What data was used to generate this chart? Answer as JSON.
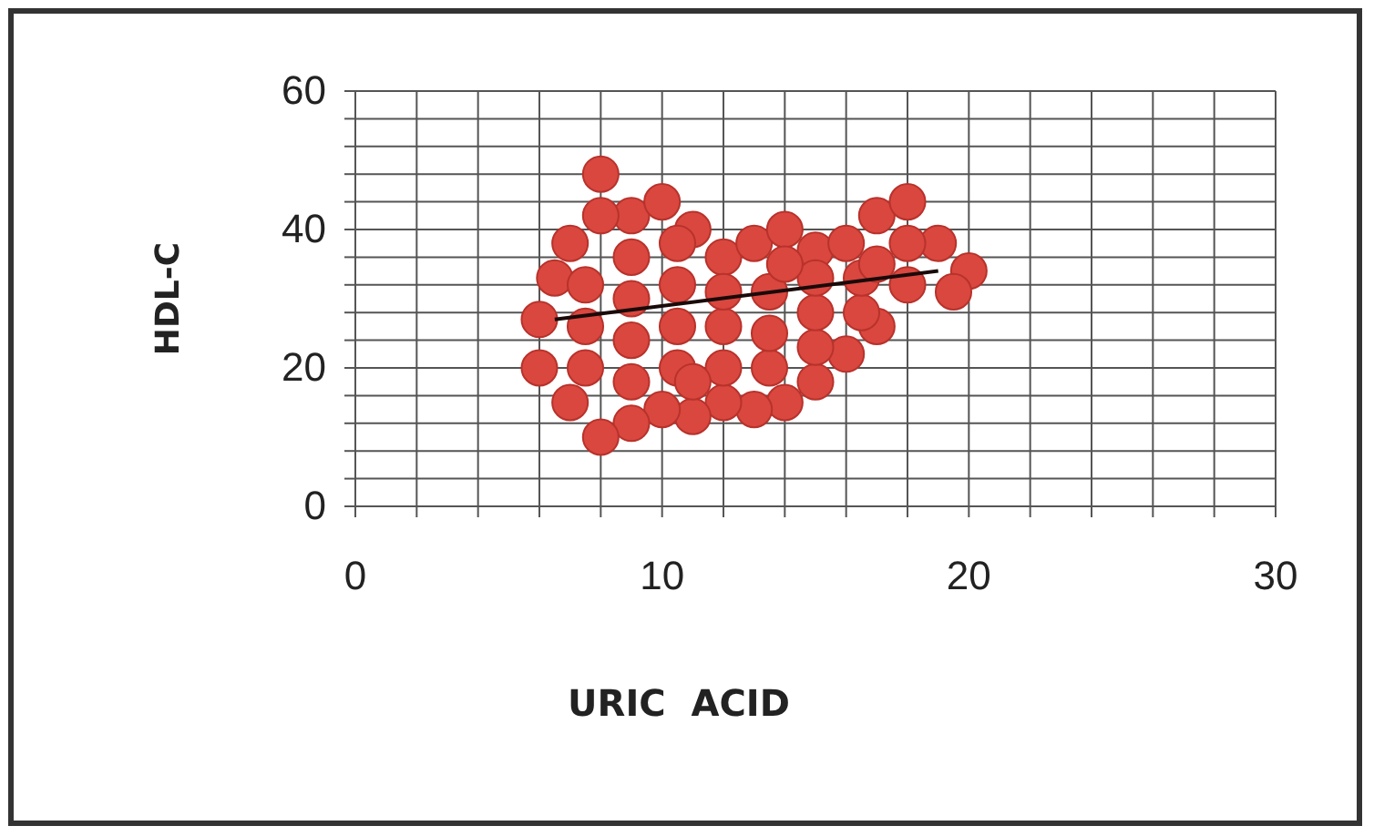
{
  "chart_data": {
    "type": "scatter",
    "xlabel": "URIC  ACID",
    "ylabel": "HDL-C",
    "xlim": [
      0,
      30
    ],
    "ylim": [
      0,
      60
    ],
    "xticks": [
      0,
      {
        "value": 2,
        "label": null
      },
      {
        "value": 4,
        "label": null
      },
      {
        "value": 6,
        "label": null
      },
      {
        "value": 8,
        "label": null
      },
      10,
      {
        "value": 12,
        "label": null
      },
      {
        "value": 14,
        "label": null
      },
      {
        "value": 16,
        "label": null
      },
      {
        "value": 18,
        "label": null
      },
      20,
      {
        "value": 22,
        "label": null
      },
      {
        "value": 24,
        "label": null
      },
      {
        "value": 26,
        "label": null
      },
      {
        "value": 28,
        "label": null
      },
      30
    ],
    "yticks": [
      0,
      {
        "value": 4,
        "label": null
      },
      {
        "value": 8,
        "label": null
      },
      {
        "value": 12,
        "label": null
      },
      {
        "value": 16,
        "label": null
      },
      20,
      {
        "value": 24,
        "label": null
      },
      {
        "value": 28,
        "label": null
      },
      {
        "value": 32,
        "label": null
      },
      {
        "value": 36,
        "label": null
      },
      40,
      {
        "value": 44,
        "label": null
      },
      {
        "value": 48,
        "label": null
      },
      {
        "value": 52,
        "label": null
      },
      {
        "value": 56,
        "label": null
      },
      60
    ],
    "grid": true,
    "series": [
      {
        "color": "#d9473f",
        "marker": "circle",
        "x": [
          7,
          8,
          9,
          10,
          11,
          12,
          13,
          14,
          15,
          16,
          17,
          18,
          19,
          20,
          19.5,
          17,
          16,
          15,
          14,
          13,
          12,
          11,
          10,
          9,
          8,
          7,
          6,
          6,
          6.5,
          7.5,
          7.5,
          7.5,
          9,
          9,
          9,
          9,
          10.5,
          10.5,
          10.5,
          10.5,
          12,
          12,
          12,
          13.5,
          13.5,
          13.5,
          15,
          15,
          15,
          16.5,
          16.5,
          18,
          18,
          8,
          11,
          14,
          17
        ],
        "values": [
          38,
          48,
          42,
          44,
          40,
          36,
          38,
          40,
          37,
          38,
          42,
          44,
          38,
          34,
          31,
          26,
          22,
          18,
          15,
          14,
          15,
          13,
          14,
          12,
          10,
          15,
          20,
          27,
          33,
          20,
          26,
          32,
          18,
          24,
          30,
          36,
          20,
          26,
          32,
          38,
          20,
          26,
          31,
          20,
          25,
          31,
          23,
          28,
          33,
          28,
          33,
          32,
          38,
          42,
          18,
          35,
          35
        ]
      },
      {
        "type": "line",
        "color": "#1a0a0a",
        "x": [
          6.5,
          19
        ],
        "values": [
          27,
          34
        ]
      }
    ]
  }
}
